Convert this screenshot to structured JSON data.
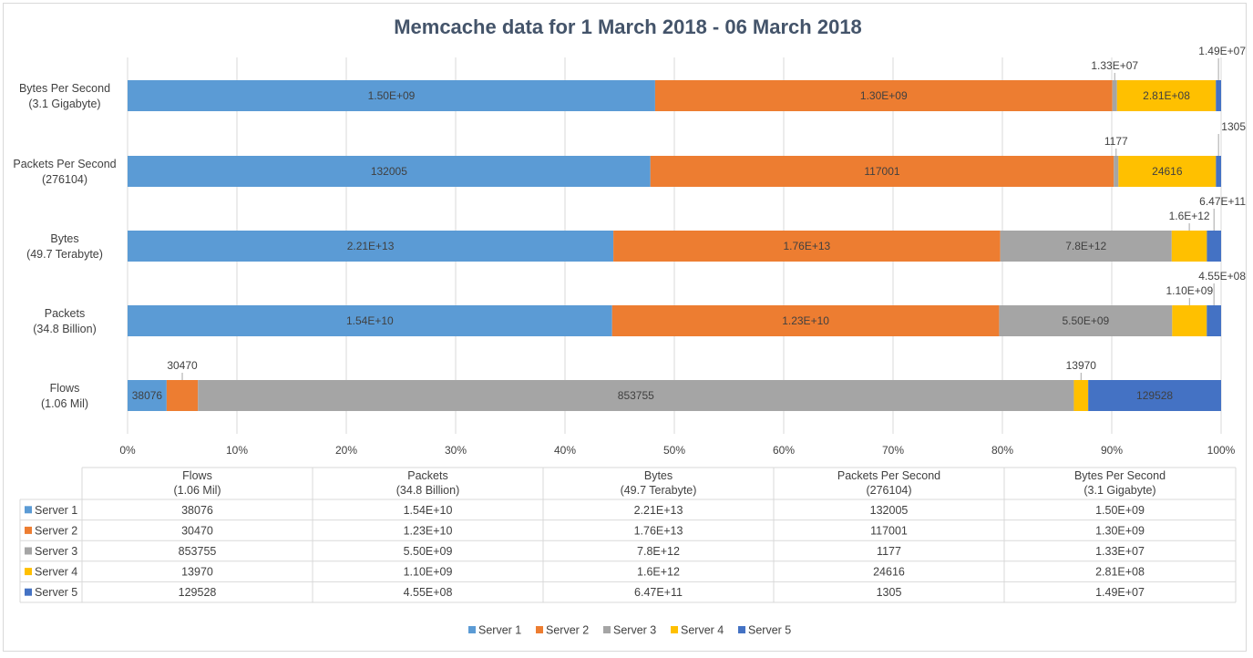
{
  "chart_data": {
    "type": "bar",
    "orientation": "horizontal",
    "stacked": "percent",
    "title": "Memcache data for 1 March 2018 - 06 March 2018",
    "categories": [
      {
        "line1": "Flows",
        "line2": "(1.06 Mil)"
      },
      {
        "line1": "Packets",
        "line2": "(34.8 Billion)"
      },
      {
        "line1": "Bytes",
        "line2": "(49.7 Terabyte)"
      },
      {
        "line1": "Packets Per Second",
        "line2": "(276104)"
      },
      {
        "line1": "Bytes Per Second",
        "line2": "(3.1 Gigabyte)"
      }
    ],
    "series": [
      {
        "name": "Server 1",
        "color": "#5b9bd5",
        "values": [
          38076,
          15400000000,
          22100000000000,
          132005,
          1500000000
        ],
        "labels": [
          "38076",
          "1.54E+10",
          "2.21E+13",
          "132005",
          "1.50E+09"
        ]
      },
      {
        "name": "Server 2",
        "color": "#ed7d31",
        "values": [
          30470,
          12300000000,
          17600000000000,
          117001,
          1300000000
        ],
        "labels": [
          "30470",
          "1.23E+10",
          "1.76E+13",
          "117001",
          "1.30E+09"
        ]
      },
      {
        "name": "Server 3",
        "color": "#a5a5a5",
        "values": [
          853755,
          5500000000,
          7800000000000,
          1177,
          13300000
        ],
        "labels": [
          "853755",
          "5.50E+09",
          "7.8E+12",
          "1177",
          "1.33E+07"
        ]
      },
      {
        "name": "Server 4",
        "color": "#ffc000",
        "values": [
          13970,
          1100000000,
          1600000000000,
          24616,
          281000000
        ],
        "labels": [
          "13970",
          "1.10E+09",
          "1.6E+12",
          "24616",
          "2.81E+08"
        ]
      },
      {
        "name": "Server 5",
        "color": "#4472c4",
        "values": [
          129528,
          455000000,
          647000000000,
          1305,
          14900000
        ],
        "labels": [
          "129528",
          "4.55E+08",
          "6.47E+11",
          "1305",
          "1.49E+07"
        ]
      }
    ],
    "xlim": [
      0,
      100
    ],
    "x_ticks": [
      "0%",
      "10%",
      "20%",
      "30%",
      "40%",
      "50%",
      "60%",
      "70%",
      "80%",
      "90%",
      "100%"
    ],
    "grid": true,
    "legend": "bottom",
    "data_table": true
  }
}
